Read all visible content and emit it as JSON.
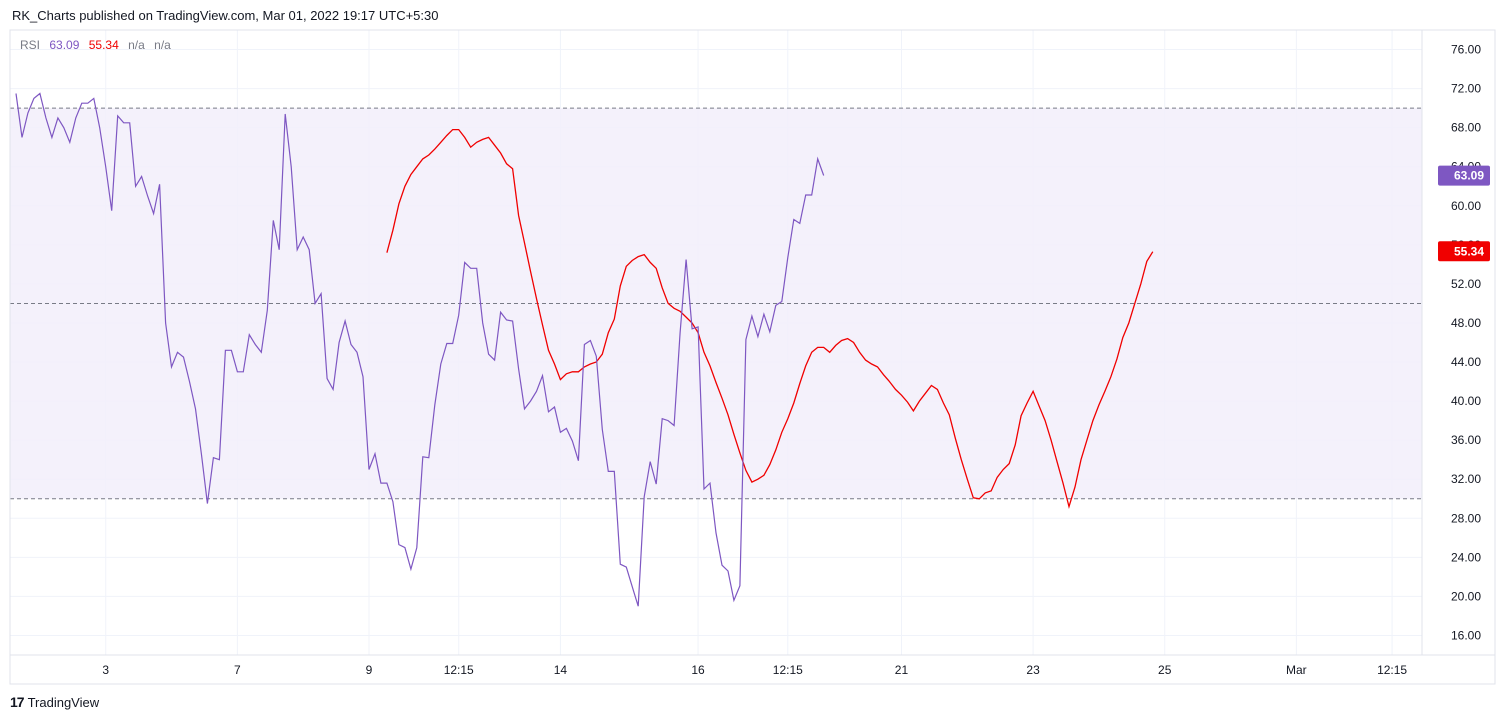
{
  "header": {
    "published_text": "RK_Charts published on TradingView.com, Mar 01, 2022 19:17 UTC+5:30"
  },
  "legend": {
    "indicator": "RSI",
    "rsi_value": "63.09",
    "ma_value": "55.34",
    "na1": "n/a",
    "na2": "n/a"
  },
  "footer": {
    "brand": "TradingView",
    "logo_glyph": "17"
  },
  "colors": {
    "rsi_line": "#7e57c2",
    "ma_line": "#f00000",
    "band_fill": "#f2eefa",
    "band_lines": "#787b86",
    "grid": "#f0f3fa",
    "rsi_tag": "#7e57c2",
    "ma_tag": "#f00000"
  },
  "chart_data": {
    "type": "line",
    "ylim": [
      14,
      78
    ],
    "y_ticks": [
      "76.00",
      "72.00",
      "68.00",
      "64.00",
      "60.00",
      "56.00",
      "52.00",
      "48.00",
      "44.00",
      "40.00",
      "36.00",
      "32.00",
      "28.00",
      "24.00",
      "20.00",
      "16.00"
    ],
    "x_ticks": [
      {
        "label": "3",
        "i": 15
      },
      {
        "label": "7",
        "i": 37
      },
      {
        "label": "9",
        "i": 59
      },
      {
        "label": "12:15",
        "i": 74
      },
      {
        "label": "14",
        "i": 91
      },
      {
        "label": "16",
        "i": 114
      },
      {
        "label": "12:15",
        "i": 129
      },
      {
        "label": "21",
        "i": 148
      },
      {
        "label": "23",
        "i": 170
      },
      {
        "label": "25",
        "i": 192
      },
      {
        "label": "Mar",
        "i": 214
      },
      {
        "label": "12:15",
        "i": 230
      }
    ],
    "x_range": [
      -1.0,
      235.0
    ],
    "bands": {
      "upper": 70,
      "middle": 50,
      "lower": 30
    },
    "last_values": {
      "rsi": "63.09",
      "ma": "55.34"
    },
    "series": [
      {
        "name": "RSI",
        "values": [
          71.5,
          67,
          69.5,
          71,
          71.5,
          69,
          67,
          69,
          68,
          66.5,
          69,
          70.5,
          70.5,
          71,
          68,
          64,
          59.5,
          69.2,
          68.5,
          68.5,
          62,
          63,
          61,
          59.2,
          62.2,
          48,
          43.5,
          45,
          44.5,
          42,
          39.2,
          34.5,
          29.5,
          34.2,
          34,
          45.2,
          45.2,
          43,
          43,
          46.8,
          45.8,
          45,
          49.3,
          58.5,
          55.5,
          69.4,
          64,
          55.5,
          56.8,
          55.5,
          50,
          51,
          42.3,
          41.2,
          46,
          48.2,
          45.8,
          45,
          42.5,
          33,
          34.6,
          31.6,
          31.6,
          29.7,
          25.3,
          25,
          22.8,
          25,
          34.3,
          34.2,
          39.6,
          43.8,
          45.9,
          45.9,
          48.8,
          54.2,
          53.6,
          53.6,
          48,
          44.8,
          44.2,
          49.1,
          48.3,
          48.2,
          43.3,
          39.2,
          40,
          41,
          42.6,
          38.9,
          39.4,
          36.8,
          37.2,
          35.9,
          33.9,
          45.8,
          46.2,
          44.6,
          37.1,
          32.8,
          32.8,
          23.3,
          23,
          21,
          19,
          30.2,
          33.8,
          31.5,
          38.2,
          38,
          37.5,
          47,
          54.5,
          47.4,
          47.6,
          31,
          31.6,
          26.5,
          23.2,
          22.6,
          19.6,
          21.1,
          46.3,
          48.7,
          46.6,
          48.9,
          47.1,
          49.8,
          50.2,
          54.7,
          58.6,
          58.2,
          61.1,
          61.1,
          64.8,
          63.1
        ],
        "x_start": 0
      },
      {
        "name": "MA",
        "values": [
          55.2,
          57.5,
          60.2,
          62,
          63.2,
          64,
          64.8,
          65.2,
          65.8,
          66.5,
          67.2,
          67.8,
          67.8,
          67,
          66,
          66.5,
          66.8,
          67,
          66.2,
          65.4,
          64.3,
          63.8,
          59,
          56.2,
          53.3,
          50.5,
          47.8,
          45.2,
          43.8,
          42.2,
          42.8,
          43,
          43,
          43.5,
          43.8,
          44,
          44.8,
          47,
          48.4,
          51.8,
          53.8,
          54.4,
          54.8,
          55,
          54.2,
          53.6,
          51.6,
          50,
          49.5,
          49.2,
          48.6,
          48,
          47,
          45,
          43.6,
          41.9,
          40.3,
          38.6,
          36.6,
          34.7,
          32.9,
          31.7,
          32,
          32.4,
          33.5,
          35,
          36.8,
          38.2,
          39.8,
          41.8,
          43.6,
          45,
          45.5,
          45.5,
          45,
          45.7,
          46.2,
          46.4,
          46,
          45,
          44.2,
          43.8,
          43.5,
          42.7,
          42,
          41.2,
          40.6,
          39.9,
          39,
          40,
          40.8,
          41.6,
          41.2,
          39.8,
          38.6,
          36.2,
          34,
          32,
          30.1,
          30,
          30.6,
          30.8,
          32.2,
          33,
          33.6,
          35.5,
          38.5,
          39.8,
          41,
          39.5,
          38,
          36,
          33.8,
          31.6,
          29.2,
          31.2,
          34,
          36,
          38,
          39.6,
          41,
          42.5,
          44.3,
          46.5,
          48,
          50,
          52,
          54.3,
          55.3
        ],
        "x_start": 62
      }
    ]
  }
}
